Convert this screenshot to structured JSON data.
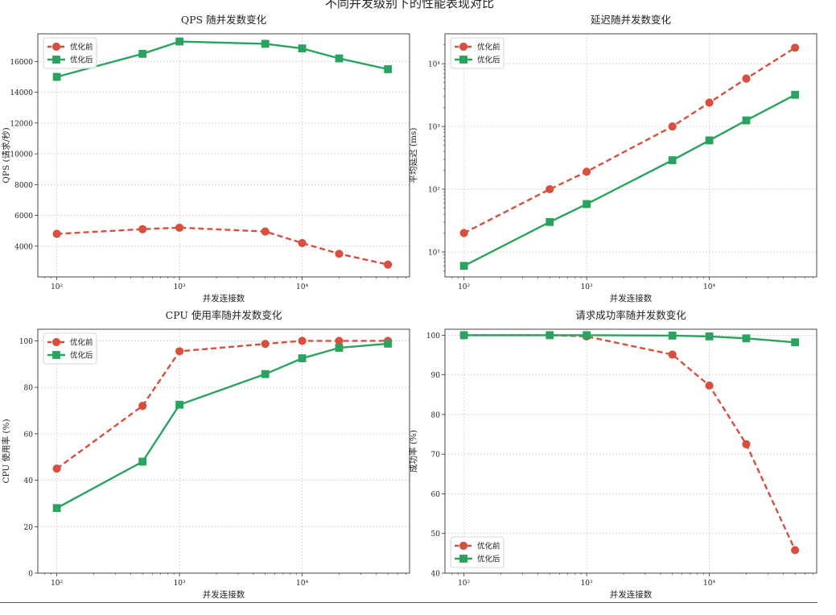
{
  "figure": {
    "title": "不同并发级别下的性能表现对比",
    "colors": {
      "before": "#d94f3d",
      "after": "#2aa35f"
    }
  },
  "chart_data": [
    {
      "type": "line",
      "title": "QPS 随并发数变化",
      "xlabel": "并发连接数",
      "ylabel": "QPS (请求/秒)",
      "xscale": "log",
      "yscale": "linear",
      "xlim": [
        70,
        75000
      ],
      "ylim": [
        2000,
        17800
      ],
      "x_ticks": [
        {
          "value": 100,
          "label": "10²"
        },
        {
          "value": 1000,
          "label": "10³"
        },
        {
          "value": 10000,
          "label": "10⁴"
        }
      ],
      "y_ticks": [
        {
          "value": 4000,
          "label": "4000"
        },
        {
          "value": 6000,
          "label": "6000"
        },
        {
          "value": 8000,
          "label": "8000"
        },
        {
          "value": 10000,
          "label": "10000"
        },
        {
          "value": 12000,
          "label": "12000"
        },
        {
          "value": 14000,
          "label": "14000"
        },
        {
          "value": 16000,
          "label": "16000"
        }
      ],
      "legend": "top-left",
      "x": [
        100,
        500,
        1000,
        5000,
        10000,
        20000,
        50000
      ],
      "series": [
        {
          "name": "优化前",
          "key": "before",
          "marker": "circle",
          "dashed": true,
          "values": [
            4800,
            5100,
            5200,
            4950,
            4200,
            3500,
            2800
          ]
        },
        {
          "name": "优化后",
          "key": "after",
          "marker": "square",
          "dashed": false,
          "values": [
            15000,
            16500,
            17300,
            17150,
            16850,
            16200,
            15500
          ]
        }
      ]
    },
    {
      "type": "line",
      "title": "延迟随并发数变化",
      "xlabel": "并发连接数",
      "ylabel": "平均延迟 (ms)",
      "xscale": "log",
      "yscale": "log",
      "xlim": [
        70,
        75000
      ],
      "ylim": [
        4,
        30000
      ],
      "x_ticks": [
        {
          "value": 100,
          "label": "10²"
        },
        {
          "value": 1000,
          "label": "10³"
        },
        {
          "value": 10000,
          "label": "10⁴"
        }
      ],
      "y_ticks": [
        {
          "value": 10,
          "label": "10¹"
        },
        {
          "value": 100,
          "label": "10²"
        },
        {
          "value": 1000,
          "label": "10³"
        },
        {
          "value": 10000,
          "label": "10⁴"
        }
      ],
      "legend": "top-left",
      "x": [
        100,
        500,
        1000,
        5000,
        10000,
        20000,
        50000
      ],
      "series": [
        {
          "name": "优化前",
          "key": "before",
          "marker": "circle",
          "dashed": true,
          "values": [
            20,
            100,
            190,
            1000,
            2400,
            5800,
            18000
          ]
        },
        {
          "name": "优化后",
          "key": "after",
          "marker": "square",
          "dashed": false,
          "values": [
            6,
            30,
            58,
            290,
            600,
            1250,
            3200
          ]
        }
      ]
    },
    {
      "type": "line",
      "title": "CPU 使用率随并发数变化",
      "xlabel": "并发连接数",
      "ylabel": "CPU 使用率 (%)",
      "xscale": "log",
      "yscale": "linear",
      "xlim": [
        70,
        75000
      ],
      "ylim": [
        0,
        105
      ],
      "x_ticks": [
        {
          "value": 100,
          "label": "10²"
        },
        {
          "value": 1000,
          "label": "10³"
        },
        {
          "value": 10000,
          "label": "10⁴"
        }
      ],
      "y_ticks": [
        {
          "value": 0,
          "label": "0"
        },
        {
          "value": 20,
          "label": "20"
        },
        {
          "value": 40,
          "label": "40"
        },
        {
          "value": 60,
          "label": "60"
        },
        {
          "value": 80,
          "label": "80"
        },
        {
          "value": 100,
          "label": "100"
        }
      ],
      "legend": "top-left",
      "x": [
        100,
        500,
        1000,
        5000,
        10000,
        20000,
        50000
      ],
      "series": [
        {
          "name": "优化前",
          "key": "before",
          "marker": "circle",
          "dashed": true,
          "values": [
            45,
            72,
            95.5,
            98.7,
            100,
            100,
            100
          ]
        },
        {
          "name": "优化后",
          "key": "after",
          "marker": "square",
          "dashed": false,
          "values": [
            28,
            48,
            72.5,
            85.7,
            92.5,
            97,
            98.8
          ]
        }
      ]
    },
    {
      "type": "line",
      "title": "请求成功率随并发数变化",
      "xlabel": "并发连接数",
      "ylabel": "成功率 (%)",
      "xscale": "log",
      "yscale": "linear",
      "xlim": [
        70,
        75000
      ],
      "ylim": [
        40,
        101.5
      ],
      "x_ticks": [
        {
          "value": 100,
          "label": "10²"
        },
        {
          "value": 1000,
          "label": "10³"
        },
        {
          "value": 10000,
          "label": "10⁴"
        }
      ],
      "y_ticks": [
        {
          "value": 40,
          "label": "40"
        },
        {
          "value": 50,
          "label": "50"
        },
        {
          "value": 60,
          "label": "60"
        },
        {
          "value": 70,
          "label": "70"
        },
        {
          "value": 80,
          "label": "80"
        },
        {
          "value": 90,
          "label": "90"
        },
        {
          "value": 100,
          "label": "100"
        }
      ],
      "legend": "bottom-left",
      "x": [
        100,
        500,
        1000,
        5000,
        10000,
        20000,
        50000
      ],
      "series": [
        {
          "name": "优化前",
          "key": "before",
          "marker": "circle",
          "dashed": true,
          "values": [
            100,
            100,
            99.7,
            95.1,
            87.3,
            72.5,
            45.8
          ]
        },
        {
          "name": "优化后",
          "key": "after",
          "marker": "square",
          "dashed": false,
          "values": [
            100,
            100,
            100,
            99.9,
            99.7,
            99.2,
            98.2
          ]
        }
      ]
    }
  ]
}
